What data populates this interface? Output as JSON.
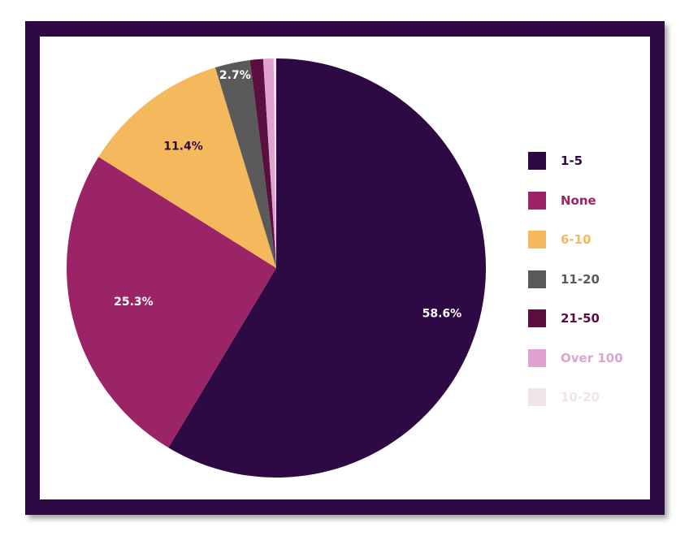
{
  "chart_data": {
    "type": "pie",
    "title": "",
    "slices": [
      {
        "label": "1-5",
        "value": 58.6,
        "display": "58.6%",
        "color": "#2e0a45",
        "label_color": "#ffffff"
      },
      {
        "label": "None",
        "value": 25.3,
        "display": "25.3%",
        "color": "#9a2466",
        "label_color": "#ffffff"
      },
      {
        "label": "6-10",
        "value": 11.4,
        "display": "11.4%",
        "color": "#f4b95c",
        "label_color": "#2e0a45"
      },
      {
        "label": "11-20",
        "value": 2.7,
        "display": "2.7%",
        "color": "#5a5a5a",
        "label_color": "#ffffff"
      },
      {
        "label": "21-50",
        "value": 1.0,
        "display": "",
        "color": "#5a0f3e",
        "label_color": "#ffffff"
      },
      {
        "label": "Over 100",
        "value": 0.8,
        "display": "",
        "color": "#e0a3cf",
        "label_color": "#ffffff"
      },
      {
        "label": "10-20",
        "value": 0.2,
        "display": "",
        "color": "#f0e4ea",
        "label_color": "#ffffff"
      }
    ],
    "start_angle_deg": 0,
    "direction": "clockwise",
    "legend_position": "right"
  },
  "colors": {
    "frame": "#2e0a45",
    "panel": "#ffffff"
  }
}
